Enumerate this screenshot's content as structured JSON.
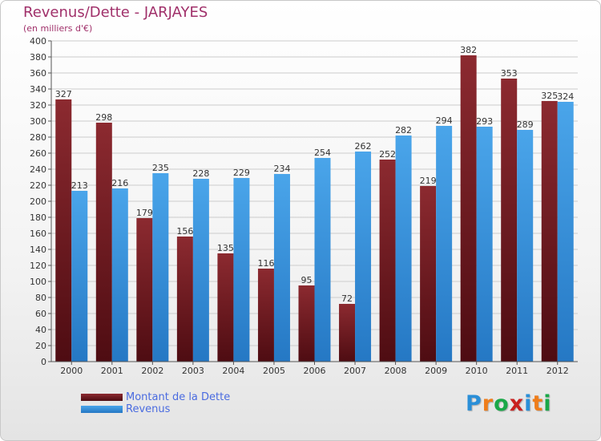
{
  "title": "Revenus/Dette - JARJAYES",
  "subtitle": "(en milliers d'€)",
  "colors": {
    "title": "#a0306a",
    "dette": "#7a1f26",
    "revenus": "#3d93db",
    "grid": "#cccccc",
    "legend_text": "#4a6be0"
  },
  "chart_data": {
    "type": "bar",
    "categories": [
      "2000",
      "2001",
      "2002",
      "2003",
      "2004",
      "2005",
      "2006",
      "2007",
      "2008",
      "2009",
      "2010",
      "2011",
      "2012"
    ],
    "series": [
      {
        "name": "Montant de la Dette",
        "values": [
          327,
          298,
          179,
          156,
          135,
          116,
          95,
          72,
          252,
          219,
          382,
          353,
          325
        ]
      },
      {
        "name": "Revenus",
        "values": [
          213,
          216,
          235,
          228,
          229,
          234,
          254,
          262,
          282,
          294,
          293,
          289,
          324
        ]
      }
    ],
    "ylim": [
      0,
      400
    ],
    "yticks": [
      0,
      20,
      40,
      60,
      80,
      100,
      120,
      140,
      160,
      180,
      200,
      220,
      240,
      260,
      280,
      300,
      320,
      340,
      360,
      380,
      400
    ],
    "grid": true,
    "legend_position": "bottom-left"
  },
  "legend": {
    "items": [
      {
        "label": "Montant de la Dette"
      },
      {
        "label": "Revenus"
      }
    ]
  },
  "logo": {
    "letters": [
      "P",
      "r",
      "o",
      "x",
      "i",
      "t",
      "i"
    ],
    "colors": [
      "#2a8fd8",
      "#ef7d1a",
      "#1aa848",
      "#c9201f",
      "#2a8fd8",
      "#ef7d1a",
      "#1aa848"
    ]
  }
}
